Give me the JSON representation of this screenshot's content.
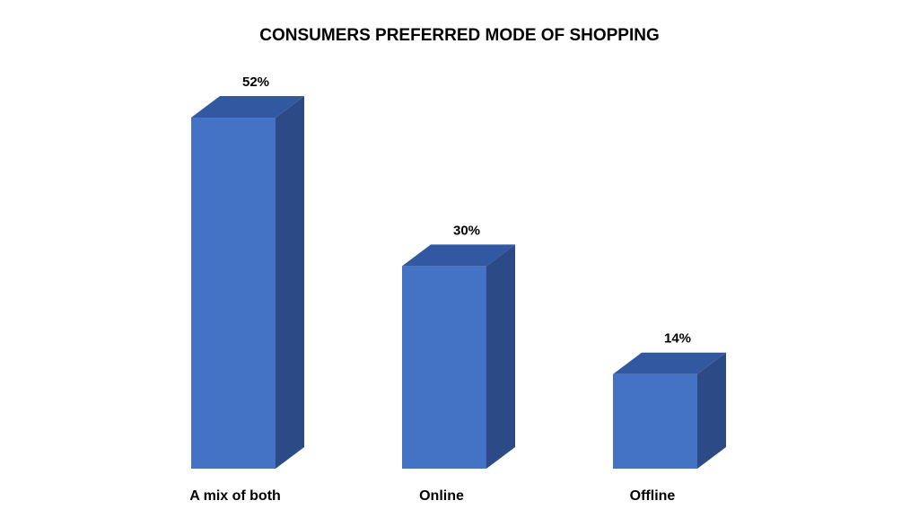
{
  "chart_data": {
    "type": "bar3d",
    "title": "CONSUMERS PREFERRED MODE OF SHOPPING",
    "categories": [
      "A mix of both",
      "Online",
      "Offline"
    ],
    "values": [
      52,
      30,
      14
    ],
    "value_labels": [
      "52%",
      "30%",
      "14%"
    ],
    "color": "#4472c4"
  }
}
